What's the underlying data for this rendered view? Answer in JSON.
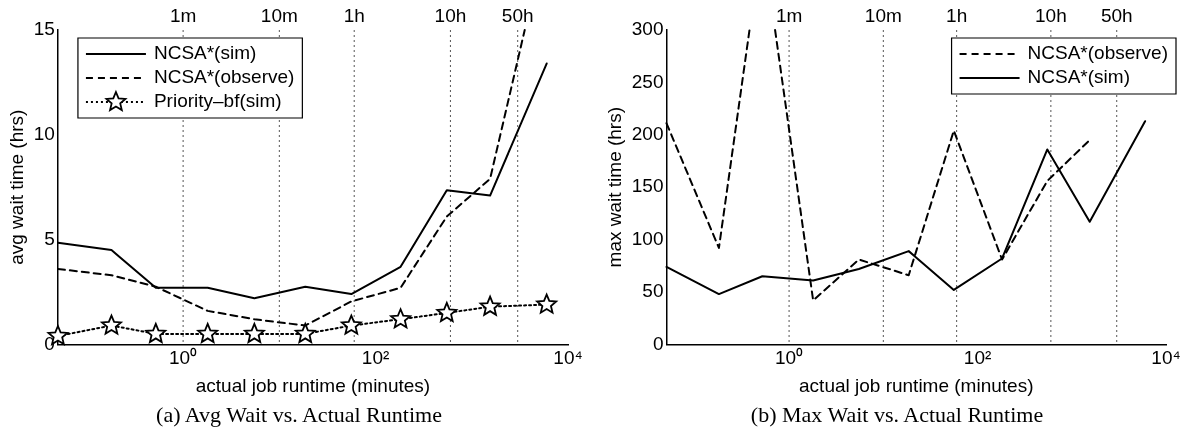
{
  "chart_data": [
    {
      "type": "line",
      "xlabel": "actual job runtime (minutes)",
      "ylabel": "avg wait time (hrs)",
      "log": "x",
      "legend": "top left",
      "xlim": [
        0.05,
        10000
      ],
      "xticks": [
        {
          "value": 1,
          "label": "10⁰"
        },
        {
          "value": 100,
          "label": "10²"
        },
        {
          "value": 10000,
          "label": "10⁴"
        }
      ],
      "ylim": [
        0,
        15
      ],
      "yticks": [
        0,
        5,
        10,
        15
      ],
      "ref_lines": [
        {
          "axis": "x",
          "value": 1,
          "label": "1m",
          "line_style": "dotted"
        },
        {
          "axis": "x",
          "value": 10,
          "label": "10m",
          "line_style": "dotted"
        },
        {
          "axis": "x",
          "value": 60,
          "label": "1h",
          "line_style": "dotted"
        },
        {
          "axis": "x",
          "value": 600,
          "label": "10h",
          "line_style": "dotted"
        },
        {
          "axis": "x",
          "value": 3000,
          "label": "50h",
          "line_style": "dotted"
        }
      ],
      "series": [
        {
          "name": "NCSA*(sim)",
          "color": "#000000",
          "line_style": "solid",
          "marker": "none",
          "x": [
            0.05,
            0.18,
            0.52,
            1.8,
            5.5,
            18.6,
            56,
            182,
            550,
            1550,
            6000
          ],
          "values": [
            4.85,
            4.5,
            2.7,
            2.7,
            2.2,
            2.75,
            2.4,
            3.7,
            7.35,
            7.1,
            13.4
          ]
        },
        {
          "name": "NCSA*(observe)",
          "color": "#000000",
          "line_style": "dashed",
          "marker": "none",
          "x": [
            0.05,
            0.18,
            0.52,
            1.8,
            5.5,
            18.6,
            56,
            182,
            550,
            1550,
            3550
          ],
          "values": [
            3.6,
            3.3,
            2.75,
            1.6,
            1.2,
            0.9,
            2.05,
            2.7,
            6.1,
            7.9,
            15
          ]
        },
        {
          "name": "Priority–bf(sim)",
          "color": "#000000",
          "line_style": "dotted",
          "marker": "star",
          "x": [
            0.05,
            0.18,
            0.52,
            1.8,
            5.5,
            18.6,
            56,
            182,
            550,
            1550,
            6000
          ],
          "values": [
            0.4,
            0.9,
            0.5,
            0.5,
            0.5,
            0.5,
            0.9,
            1.2,
            1.5,
            1.8,
            1.9
          ]
        }
      ],
      "annotations": [
        "(a) Avg Wait vs. Actual Runtime"
      ]
    },
    {
      "type": "line",
      "xlabel": "actual job runtime (minutes)",
      "ylabel": "max wait time (hrs)",
      "log": "x",
      "legend": "top right",
      "xlim": [
        0.05,
        10000
      ],
      "xticks": [
        {
          "value": 1,
          "label": "10⁰"
        },
        {
          "value": 100,
          "label": "10²"
        },
        {
          "value": 10000,
          "label": "10⁴"
        }
      ],
      "ylim": [
        0,
        300
      ],
      "yticks": [
        0,
        50,
        100,
        150,
        200,
        250,
        300
      ],
      "ref_lines": [
        {
          "axis": "x",
          "value": 1,
          "label": "1m",
          "line_style": "dotted"
        },
        {
          "axis": "x",
          "value": 10,
          "label": "10m",
          "line_style": "dotted"
        },
        {
          "axis": "x",
          "value": 60,
          "label": "1h",
          "line_style": "dotted"
        },
        {
          "axis": "x",
          "value": 600,
          "label": "10h",
          "line_style": "dotted"
        },
        {
          "axis": "x",
          "value": 3000,
          "label": "50h",
          "line_style": "dotted"
        }
      ],
      "series": [
        {
          "name": "NCSA*(observe)",
          "color": "#000000",
          "line_style": "dashed",
          "marker": "none",
          "x": [
            0.05,
            0.18,
            0.38,
            0.52,
            0.71,
            1.8,
            5.5,
            18.6,
            56,
            182,
            550,
            1550
          ],
          "values": [
            211,
            92,
            300,
            null,
            300,
            42,
            81,
            66,
            204,
            81,
            156,
            195
          ]
        },
        {
          "name": "NCSA*(sim)",
          "color": "#000000",
          "line_style": "solid",
          "marker": "none",
          "x": [
            0.05,
            0.18,
            0.52,
            1.8,
            5.5,
            18.6,
            56,
            182,
            550,
            1550,
            6000
          ],
          "values": [
            74,
            48,
            65,
            61,
            72,
            89,
            52,
            82,
            186,
            117,
            213
          ]
        }
      ],
      "annotations": [
        "(b) Max Wait vs. Actual Runtime"
      ]
    }
  ]
}
